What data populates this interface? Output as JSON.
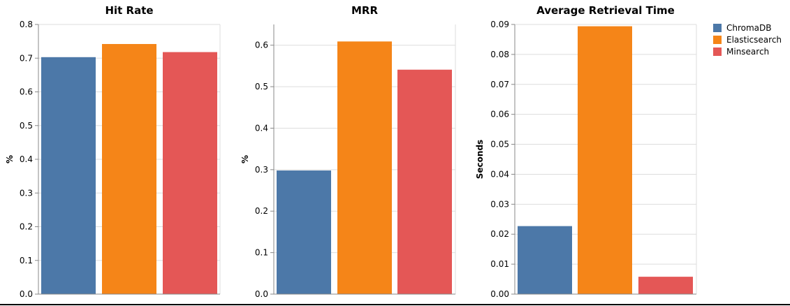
{
  "colors": {
    "ChromaDB": "#4c78a8",
    "Elasticsearch": "#f58518",
    "Minsearch": "#e45756"
  },
  "legend": {
    "position": "top-right",
    "entries": [
      "ChromaDB",
      "Elasticsearch",
      "Minsearch"
    ]
  },
  "chart_data": [
    {
      "type": "bar",
      "title": "Hit Rate",
      "xlabel": "",
      "ylabel": "%",
      "ylim": [
        0,
        0.8
      ],
      "yticks": [
        0,
        0.1,
        0.2,
        0.3,
        0.4,
        0.5,
        0.6,
        0.7,
        0.8
      ],
      "ytick_labels": [
        "0.0",
        "0.1",
        "0.2",
        "0.3",
        "0.4",
        "0.5",
        "0.6",
        "0.7",
        "0.8"
      ],
      "grid": true,
      "categories": [
        "ChromaDB",
        "Elasticsearch",
        "Minsearch"
      ],
      "values": [
        0.703,
        0.742,
        0.718
      ]
    },
    {
      "type": "bar",
      "title": "MRR",
      "xlabel": "",
      "ylabel": "%",
      "ylim": [
        0,
        0.65
      ],
      "yticks": [
        0,
        0.1,
        0.2,
        0.3,
        0.4,
        0.5,
        0.6
      ],
      "ytick_labels": [
        "0.0",
        "0.1",
        "0.2",
        "0.3",
        "0.4",
        "0.5",
        "0.6"
      ],
      "grid": true,
      "categories": [
        "ChromaDB",
        "Elasticsearch",
        "Minsearch"
      ],
      "values": [
        0.298,
        0.609,
        0.541
      ]
    },
    {
      "type": "bar",
      "title": "Average Retrieval Time",
      "xlabel": "",
      "ylabel": "Seconds",
      "ylim": [
        0,
        0.09
      ],
      "yticks": [
        0,
        0.01,
        0.02,
        0.03,
        0.04,
        0.05,
        0.06,
        0.07,
        0.08,
        0.09
      ],
      "ytick_labels": [
        "0.00",
        "0.01",
        "0.02",
        "0.03",
        "0.04",
        "0.05",
        "0.06",
        "0.07",
        "0.08",
        "0.09"
      ],
      "grid": true,
      "categories": [
        "ChromaDB",
        "Elasticsearch",
        "Minsearch"
      ],
      "values": [
        0.0227,
        0.0894,
        0.0058
      ]
    }
  ]
}
